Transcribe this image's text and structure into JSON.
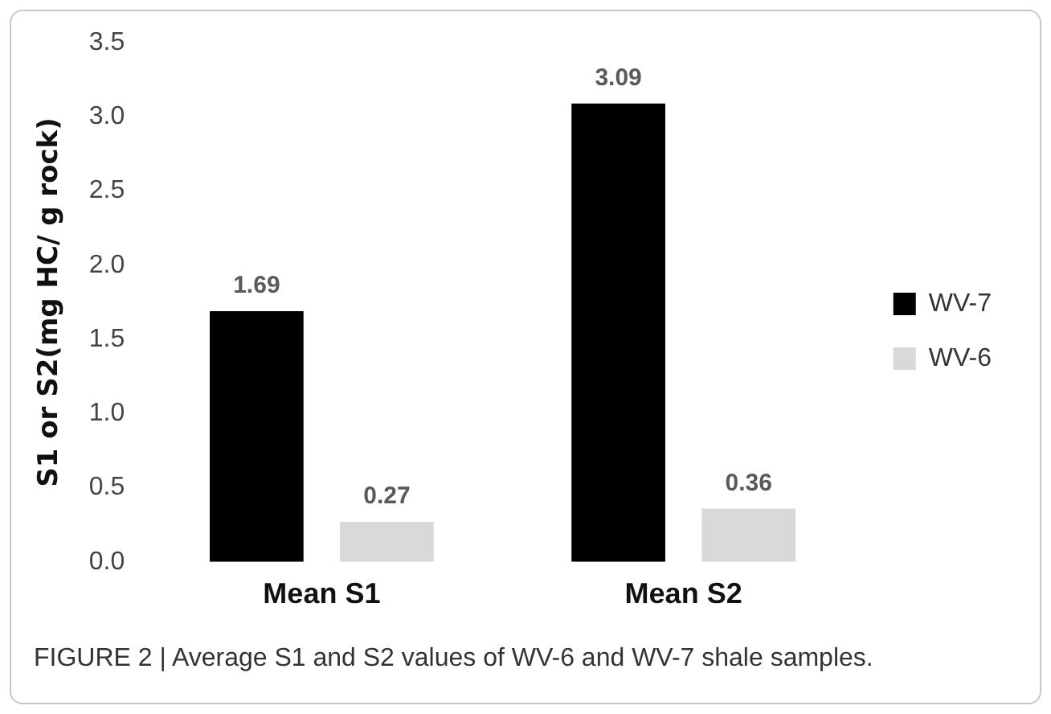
{
  "chart_data": {
    "type": "bar",
    "ylabel": "S1 or S2(mg HC/ g rock)",
    "categories": [
      "Mean S1",
      "Mean S2"
    ],
    "series": [
      {
        "name": "WV-7",
        "color": "#000000",
        "values": [
          1.69,
          3.09
        ]
      },
      {
        "name": "WV-6",
        "color": "#d9d9d9",
        "values": [
          0.27,
          0.36
        ]
      }
    ],
    "ylim": [
      0,
      3.5
    ],
    "yticks": [
      {
        "value": 0,
        "label": "0.0"
      },
      {
        "value": 0.5,
        "label": "0.5"
      },
      {
        "value": 1,
        "label": "1.0"
      },
      {
        "value": 1.5,
        "label": "1.5"
      },
      {
        "value": 2,
        "label": "2.0"
      },
      {
        "value": 2.5,
        "label": "2.5"
      },
      {
        "value": 3,
        "label": "3.0"
      },
      {
        "value": 3.5,
        "label": "3.5"
      }
    ],
    "grid": false,
    "legend": "right",
    "data_labels": true,
    "annotations": [
      "FIGURE 2 | Average S1 and S2 values of WV-6 and WV-7 shale samples."
    ]
  }
}
